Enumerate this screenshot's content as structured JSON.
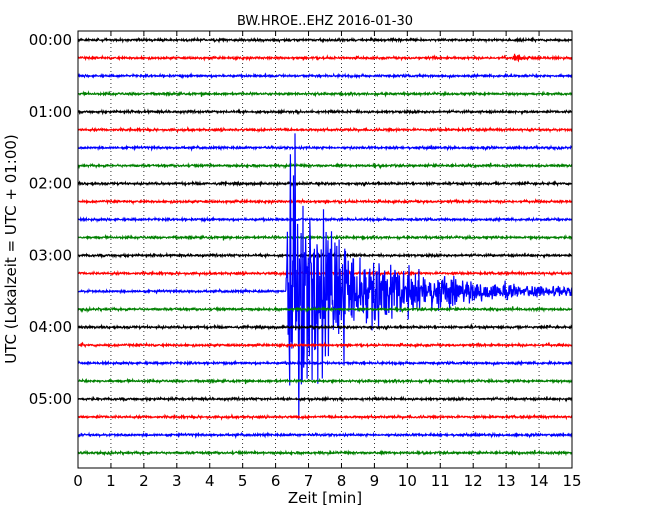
{
  "chart_data": {
    "type": "line",
    "title": "BW.HROE..EHZ 2016-01-30",
    "xlabel": "Zeit  [min]",
    "ylabel": "UTC (Lokalzeit = UTC + 01:00)",
    "xlim": [
      0,
      15
    ],
    "x_ticks": [
      "0",
      "1",
      "2",
      "3",
      "4",
      "5",
      "6",
      "7",
      "8",
      "9",
      "10",
      "11",
      "12",
      "13",
      "14",
      "15"
    ],
    "y_ticks": [
      "00:00",
      "01:00",
      "02:00",
      "03:00",
      "04:00",
      "05:00"
    ],
    "rows_per_hour": 4,
    "row_interval_minutes": 15,
    "row_start_times": [
      "00:00",
      "00:15",
      "00:30",
      "00:45",
      "01:00",
      "01:15",
      "01:30",
      "01:45",
      "02:00",
      "02:15",
      "02:30",
      "02:45",
      "03:00",
      "03:15",
      "03:30",
      "03:45",
      "04:00",
      "04:15",
      "04:30",
      "04:45",
      "05:00",
      "05:15",
      "05:30",
      "05:45"
    ],
    "trace_color_cycle": [
      "#000000",
      "#ff0000",
      "#0000ff",
      "#008000"
    ],
    "grid": "vertical dotted lines at each minute",
    "events": [
      {
        "row_start": "00:15",
        "onset_min": 13.2,
        "peak_relative": 0.45,
        "duration_min": 1.0
      },
      {
        "row_start": "03:30",
        "onset_min": 6.3,
        "peak_relative": 12.0,
        "duration_min": 8.5
      }
    ]
  }
}
